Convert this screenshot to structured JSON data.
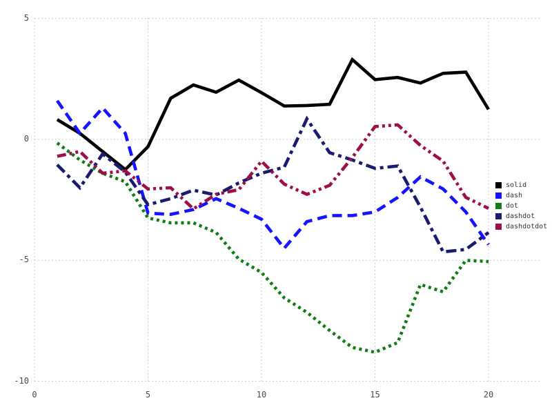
{
  "chart": {
    "background": "#ffffff",
    "grid_color": "#c9c9d4",
    "tick_color": "#4a4a50",
    "x_tick_labels": [
      "0",
      "5",
      "10",
      "15",
      "20"
    ],
    "y_tick_labels": [
      "5",
      "0",
      "-5",
      "-10"
    ],
    "x_tick_values": [
      0,
      5,
      10,
      15,
      20
    ],
    "y_tick_values": [
      5,
      0,
      -5,
      -10
    ]
  },
  "chart_data": {
    "type": "line",
    "title": "",
    "xlabel": "",
    "ylabel": "",
    "xlim": [
      0,
      20.6
    ],
    "ylim": [
      -10.5,
      5
    ],
    "grid": true,
    "legend_position": "right",
    "x": [
      1,
      2,
      3,
      4,
      5,
      6,
      7,
      8,
      9,
      10,
      11,
      12,
      13,
      14,
      15,
      16,
      17,
      18,
      19,
      20
    ],
    "series": [
      {
        "name": "solid",
        "style": "solid",
        "color": "#000000",
        "values": [
          0.82,
          0.25,
          -0.5,
          -1.25,
          -0.3,
          1.7,
          2.25,
          1.95,
          2.45,
          1.93,
          1.38,
          1.4,
          1.45,
          3.3,
          2.47,
          2.56,
          2.33,
          2.73,
          2.78,
          1.24
        ]
      },
      {
        "name": "dash",
        "style": "dash",
        "color": "#1414ff",
        "values": [
          1.6,
          0.25,
          1.3,
          0.25,
          -3.05,
          -3.1,
          -2.9,
          -2.45,
          -2.85,
          -3.3,
          -4.5,
          -3.4,
          -3.15,
          -3.15,
          -3.0,
          -2.4,
          -1.55,
          -2.05,
          -3.0,
          -4.35
        ]
      },
      {
        "name": "dot",
        "style": "dot",
        "color": "#0f7d0f",
        "values": [
          -0.15,
          -0.85,
          -1.4,
          -1.75,
          -3.25,
          -3.45,
          -3.45,
          -3.85,
          -4.95,
          -5.5,
          -6.55,
          -7.15,
          -7.9,
          -8.6,
          -8.8,
          -8.4,
          -6.0,
          -6.3,
          -5.0,
          -5.05
        ]
      },
      {
        "name": "dashdot",
        "style": "dashdot",
        "color": "#1a1a70",
        "values": [
          -1.05,
          -2.0,
          -0.6,
          -1.35,
          -2.7,
          -2.45,
          -2.1,
          -2.3,
          -1.8,
          -1.4,
          -1.15,
          0.85,
          -0.55,
          -0.85,
          -1.2,
          -1.1,
          -2.8,
          -4.65,
          -4.55,
          -3.85
        ]
      },
      {
        "name": "dashdotdot",
        "style": "dashdotdot",
        "color": "#9b1048",
        "values": [
          -0.7,
          -0.5,
          -1.4,
          -1.3,
          -2.05,
          -2.0,
          -2.87,
          -2.27,
          -2.08,
          -0.9,
          -1.85,
          -2.27,
          -1.9,
          -0.75,
          0.53,
          0.6,
          -0.25,
          -0.9,
          -2.4,
          -2.85
        ]
      }
    ]
  }
}
